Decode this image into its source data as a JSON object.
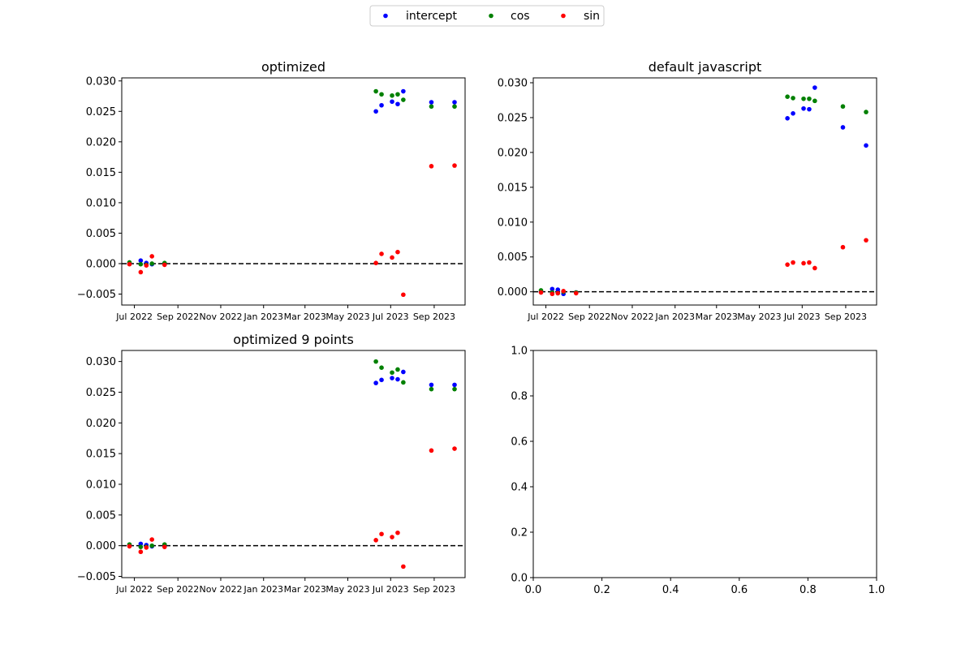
{
  "legend": {
    "placement": "top-center",
    "entries": [
      {
        "name": "intercept",
        "color": "#0000ff"
      },
      {
        "name": "cos",
        "color": "#008000"
      },
      {
        "name": "sin",
        "color": "#ff0000"
      }
    ]
  },
  "chart_data": [
    {
      "type": "scatter",
      "title": "optimized",
      "xlim": [
        "2022-06-13",
        "2023-10-15"
      ],
      "ylim": [
        -0.0068,
        0.0305
      ],
      "xticks": [
        "2022-07-01",
        "2022-09-01",
        "2022-11-01",
        "2023-01-01",
        "2023-03-01",
        "2023-05-01",
        "2023-07-01",
        "2023-09-01"
      ],
      "xticklabels": [
        "Jul 2022",
        "Sep 2022",
        "Nov 2022",
        "Jan 2023",
        "Mar 2023",
        "May 2023",
        "Jul 2023",
        "Sep 2023"
      ],
      "yticks": [
        -0.005,
        0,
        0.005,
        0.01,
        0.015,
        0.02,
        0.025,
        0.03
      ],
      "yticklabels": [
        "−0.005",
        "0.000",
        "0.005",
        "0.010",
        "0.015",
        "0.020",
        "0.025",
        "0.030"
      ],
      "hline": 0,
      "series": [
        {
          "name": "intercept",
          "color": "#0000ff",
          "points": [
            [
              "2022-06-24",
              0.0
            ],
            [
              "2022-07-10",
              0.0005
            ],
            [
              "2022-07-18",
              0.0001
            ],
            [
              "2022-07-26",
              -0.0001
            ],
            [
              "2022-08-13",
              0.0
            ],
            [
              "2023-06-10",
              0.025
            ],
            [
              "2023-06-18",
              0.026
            ],
            [
              "2023-07-03",
              0.0266
            ],
            [
              "2023-07-11",
              0.0262
            ],
            [
              "2023-07-19",
              0.0283
            ],
            [
              "2023-08-28",
              0.0265
            ],
            [
              "2023-09-30",
              0.0265
            ]
          ]
        },
        {
          "name": "cos",
          "color": "#008000",
          "points": [
            [
              "2022-06-24",
              0.0002
            ],
            [
              "2022-07-10",
              -0.0001
            ],
            [
              "2022-07-18",
              -0.0002
            ],
            [
              "2022-07-26",
              0.0
            ],
            [
              "2022-08-13",
              0.0001
            ],
            [
              "2023-06-10",
              0.0283
            ],
            [
              "2023-06-18",
              0.0278
            ],
            [
              "2023-07-03",
              0.0276
            ],
            [
              "2023-07-11",
              0.0278
            ],
            [
              "2023-07-19",
              0.0269
            ],
            [
              "2023-08-28",
              0.0258
            ],
            [
              "2023-09-30",
              0.0258
            ]
          ]
        },
        {
          "name": "sin",
          "color": "#ff0000",
          "points": [
            [
              "2022-06-24",
              -0.0001
            ],
            [
              "2022-07-10",
              -0.0014
            ],
            [
              "2022-07-18",
              -0.0003
            ],
            [
              "2022-07-26",
              0.0012
            ],
            [
              "2022-08-13",
              -0.0002
            ],
            [
              "2023-06-10",
              0.0001
            ],
            [
              "2023-06-18",
              0.0016
            ],
            [
              "2023-07-03",
              0.001
            ],
            [
              "2023-07-11",
              0.0019
            ],
            [
              "2023-07-19",
              -0.0051
            ],
            [
              "2023-08-28",
              0.016
            ],
            [
              "2023-09-30",
              0.0161
            ]
          ]
        }
      ]
    },
    {
      "type": "scatter",
      "title": "default javascript",
      "xlim": [
        "2022-06-13",
        "2023-10-15"
      ],
      "ylim": [
        -0.0019,
        0.0307
      ],
      "xticks": [
        "2022-07-01",
        "2022-09-01",
        "2022-11-01",
        "2023-01-01",
        "2023-03-01",
        "2023-05-01",
        "2023-07-01",
        "2023-09-01"
      ],
      "xticklabels": [
        "Jul 2022",
        "Sep 2022",
        "Nov 2022",
        "Jan 2023",
        "Mar 2023",
        "May 2023",
        "Jul 2023",
        "Sep 2023"
      ],
      "yticks": [
        0,
        0.005,
        0.01,
        0.015,
        0.02,
        0.025,
        0.03
      ],
      "yticklabels": [
        "0.000",
        "0.005",
        "0.010",
        "0.015",
        "0.020",
        "0.025",
        "0.030"
      ],
      "hline": 0,
      "series": [
        {
          "name": "intercept",
          "color": "#0000ff",
          "points": [
            [
              "2022-06-24",
              0.0
            ],
            [
              "2022-07-10",
              0.0004
            ],
            [
              "2022-07-18",
              0.0003
            ],
            [
              "2022-07-26",
              -0.0003
            ],
            [
              "2022-08-13",
              -0.0001
            ],
            [
              "2023-06-10",
              0.0249
            ],
            [
              "2023-06-18",
              0.0256
            ],
            [
              "2023-07-03",
              0.0263
            ],
            [
              "2023-07-11",
              0.0262
            ],
            [
              "2023-07-19",
              0.0293
            ],
            [
              "2023-08-28",
              0.0236
            ],
            [
              "2023-09-30",
              0.021
            ]
          ]
        },
        {
          "name": "cos",
          "color": "#008000",
          "points": [
            [
              "2022-06-24",
              0.0002
            ],
            [
              "2022-07-10",
              -0.0001
            ],
            [
              "2022-07-18",
              -0.0002
            ],
            [
              "2022-07-26",
              0.0
            ],
            [
              "2022-08-13",
              -0.0001
            ],
            [
              "2023-06-10",
              0.028
            ],
            [
              "2023-06-18",
              0.0278
            ],
            [
              "2023-07-03",
              0.0277
            ],
            [
              "2023-07-11",
              0.0277
            ],
            [
              "2023-07-19",
              0.0274
            ],
            [
              "2023-08-28",
              0.0266
            ],
            [
              "2023-09-30",
              0.0258
            ]
          ]
        },
        {
          "name": "sin",
          "color": "#ff0000",
          "points": [
            [
              "2022-06-24",
              -0.0001
            ],
            [
              "2022-07-10",
              -0.0003
            ],
            [
              "2022-07-18",
              -0.0002
            ],
            [
              "2022-07-26",
              0.0001
            ],
            [
              "2022-08-13",
              -0.0002
            ],
            [
              "2023-06-10",
              0.0039
            ],
            [
              "2023-06-18",
              0.0042
            ],
            [
              "2023-07-03",
              0.0041
            ],
            [
              "2023-07-11",
              0.0042
            ],
            [
              "2023-07-19",
              0.0034
            ],
            [
              "2023-08-28",
              0.0064
            ],
            [
              "2023-09-30",
              0.0074
            ]
          ]
        }
      ]
    },
    {
      "type": "scatter",
      "title": "optimized 9 points",
      "xlim": [
        "2022-06-13",
        "2023-10-15"
      ],
      "ylim": [
        -0.0052,
        0.0318
      ],
      "xticks": [
        "2022-07-01",
        "2022-09-01",
        "2022-11-01",
        "2023-01-01",
        "2023-03-01",
        "2023-05-01",
        "2023-07-01",
        "2023-09-01"
      ],
      "xticklabels": [
        "Jul 2022",
        "Sep 2022",
        "Nov 2022",
        "Jan 2023",
        "Mar 2023",
        "May 2023",
        "Jul 2023",
        "Sep 2023"
      ],
      "yticks": [
        -0.005,
        0,
        0.005,
        0.01,
        0.015,
        0.02,
        0.025,
        0.03
      ],
      "yticklabels": [
        "−0.005",
        "0.000",
        "0.005",
        "0.010",
        "0.015",
        "0.020",
        "0.025",
        "0.030"
      ],
      "hline": 0,
      "series": [
        {
          "name": "intercept",
          "color": "#0000ff",
          "points": [
            [
              "2022-06-24",
              0.0
            ],
            [
              "2022-07-10",
              0.0003
            ],
            [
              "2022-07-18",
              0.0001
            ],
            [
              "2022-07-26",
              -0.0001
            ],
            [
              "2022-08-13",
              0.0
            ],
            [
              "2023-06-10",
              0.0265
            ],
            [
              "2023-06-18",
              0.027
            ],
            [
              "2023-07-03",
              0.0273
            ],
            [
              "2023-07-11",
              0.0271
            ],
            [
              "2023-07-19",
              0.0283
            ],
            [
              "2023-08-28",
              0.0262
            ],
            [
              "2023-09-30",
              0.0262
            ]
          ]
        },
        {
          "name": "cos",
          "color": "#008000",
          "points": [
            [
              "2022-06-24",
              0.0002
            ],
            [
              "2022-07-10",
              -0.0002
            ],
            [
              "2022-07-18",
              -0.0002
            ],
            [
              "2022-07-26",
              0.0
            ],
            [
              "2022-08-13",
              0.0002
            ],
            [
              "2023-06-10",
              0.03
            ],
            [
              "2023-06-18",
              0.029
            ],
            [
              "2023-07-03",
              0.0282
            ],
            [
              "2023-07-11",
              0.0287
            ],
            [
              "2023-07-19",
              0.0266
            ],
            [
              "2023-08-28",
              0.0255
            ],
            [
              "2023-09-30",
              0.0255
            ]
          ]
        },
        {
          "name": "sin",
          "color": "#ff0000",
          "points": [
            [
              "2022-06-24",
              -0.0001
            ],
            [
              "2022-07-10",
              -0.001
            ],
            [
              "2022-07-18",
              -0.0003
            ],
            [
              "2022-07-26",
              0.001
            ],
            [
              "2022-08-13",
              -0.0002
            ],
            [
              "2023-06-10",
              0.0009
            ],
            [
              "2023-06-18",
              0.0019
            ],
            [
              "2023-07-03",
              0.0014
            ],
            [
              "2023-07-11",
              0.0021
            ],
            [
              "2023-07-19",
              -0.0034
            ],
            [
              "2023-08-28",
              0.0155
            ],
            [
              "2023-09-30",
              0.0158
            ]
          ]
        }
      ]
    },
    {
      "type": "scatter",
      "title": "",
      "xlim": [
        0,
        1
      ],
      "ylim": [
        0,
        1
      ],
      "xticks": [
        0,
        0.2,
        0.4,
        0.6,
        0.8,
        1.0
      ],
      "xticklabels": [
        "0.0",
        "0.2",
        "0.4",
        "0.6",
        "0.8",
        "1.0"
      ],
      "yticks": [
        0,
        0.2,
        0.4,
        0.6,
        0.8,
        1.0
      ],
      "yticklabels": [
        "0.0",
        "0.2",
        "0.4",
        "0.6",
        "0.8",
        "1.0"
      ],
      "series": []
    }
  ]
}
